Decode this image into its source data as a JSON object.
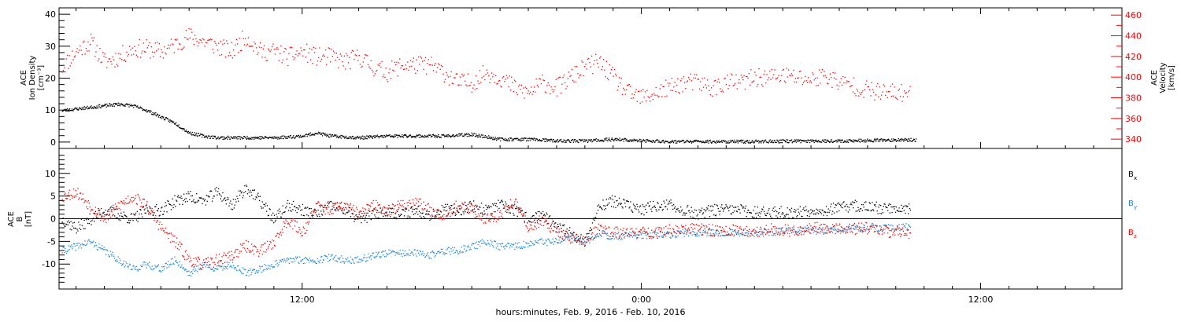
{
  "xaxis": {
    "caption": "hours:minutes, Feb.  9, 2016 - Feb. 10, 2016",
    "tick_labels": [
      "12:00",
      "0:00",
      "12:00"
    ],
    "tick_hours": [
      12,
      24,
      36
    ],
    "range_hours": [
      3.4,
      41.0
    ]
  },
  "colors": {
    "black": "#000000",
    "red": "#ff0000",
    "blue": "#1e88d6"
  },
  "chart_data": [
    {
      "type": "scatter",
      "panel": "top",
      "left_axis": {
        "label_lines": [
          "ACE",
          "Ion Density",
          "[cm⁻³]"
        ],
        "ylim": [
          -2,
          42
        ],
        "tick_labels": [
          "0",
          "10",
          "20",
          "30",
          "40"
        ],
        "tick_values": [
          0,
          10,
          20,
          30,
          40
        ]
      },
      "right_axis": {
        "label_lines": [
          "ACE",
          "Velocity",
          "[km/s]"
        ],
        "ylim": [
          331,
          467
        ],
        "tick_labels": [
          "340",
          "360",
          "380",
          "400",
          "420",
          "440",
          "460"
        ],
        "tick_values": [
          340,
          360,
          380,
          400,
          420,
          440,
          460
        ]
      },
      "series": [
        {
          "name": "Ion Density",
          "axis": "left",
          "color": "black",
          "x": [
            3.5,
            4.0,
            4.5,
            5.0,
            5.5,
            6.0,
            6.5,
            7.0,
            7.5,
            8.0,
            8.5,
            9.0,
            10,
            11,
            12,
            12.5,
            13,
            14,
            15,
            16,
            17,
            18,
            19,
            20,
            21,
            22,
            23,
            24,
            25,
            26,
            27,
            28,
            29,
            30,
            31,
            32,
            33,
            33.7
          ],
          "y": [
            10,
            10.5,
            11,
            11.5,
            12,
            11.5,
            10,
            8,
            6,
            3,
            2,
            1.5,
            1.5,
            1.5,
            2,
            3,
            2,
            1.5,
            2,
            2,
            2,
            2.5,
            1,
            1,
            0.5,
            0.5,
            1,
            0.5,
            0.3,
            0.3,
            0.3,
            0.3,
            0.4,
            0.5,
            0.5,
            0.6,
            0.8,
            0.8
          ]
        },
        {
          "name": "Velocity",
          "axis": "right",
          "color": "red",
          "x": [
            3.5,
            4.0,
            4.5,
            5.0,
            5.5,
            6.0,
            6.5,
            7.0,
            7.5,
            8.0,
            8.5,
            9.0,
            9.5,
            10,
            10.5,
            11,
            11.5,
            12,
            12.5,
            13,
            13.5,
            14,
            14.5,
            15,
            15.5,
            16,
            16.5,
            17,
            17.5,
            18,
            18.5,
            19,
            19.5,
            20,
            20.5,
            21,
            21.5,
            22,
            22.5,
            23,
            23.5,
            24,
            24.5,
            25,
            25.5,
            26,
            26.5,
            27,
            27.5,
            28,
            28.5,
            29,
            29.5,
            30,
            30.5,
            31,
            31.5,
            32,
            32.5,
            33,
            33.5
          ],
          "y": [
            410,
            425,
            435,
            415,
            420,
            428,
            428,
            425,
            432,
            440,
            435,
            430,
            425,
            440,
            425,
            425,
            420,
            425,
            420,
            420,
            415,
            420,
            410,
            405,
            412,
            412,
            412,
            405,
            395,
            395,
            405,
            400,
            390,
            385,
            395,
            390,
            400,
            410,
            415,
            400,
            385,
            380,
            385,
            390,
            395,
            395,
            390,
            395,
            395,
            400,
            400,
            402,
            400,
            398,
            402,
            395,
            392,
            388,
            385,
            385,
            385
          ]
        }
      ]
    },
    {
      "type": "scatter",
      "panel": "bottom",
      "left_axis": {
        "label_lines": [
          "ACE",
          "B",
          "[nT]"
        ],
        "ylim": [
          -15.5,
          15.5
        ],
        "tick_labels": [
          "-10",
          "-5",
          "0",
          "5",
          "10"
        ],
        "tick_values": [
          -10,
          -5,
          0,
          5,
          10
        ]
      },
      "legend": {
        "position": "right",
        "entries": [
          "B",
          "B",
          "B"
        ],
        "subscripts": [
          "x",
          "y",
          "z"
        ]
      },
      "series": [
        {
          "name": "Bx",
          "color": "black",
          "x": [
            3.5,
            4.0,
            4.5,
            5.0,
            5.5,
            6.0,
            6.5,
            7.0,
            7.5,
            8.0,
            8.5,
            9.0,
            9.5,
            10,
            10.5,
            11,
            11.5,
            12,
            12.5,
            13,
            13.5,
            14,
            14.5,
            15,
            15.5,
            16,
            16.5,
            17,
            17.5,
            18,
            18.5,
            19,
            19.5,
            20,
            20.5,
            21,
            21.5,
            22,
            22.5,
            23,
            23.5,
            24,
            24.5,
            25,
            25.5,
            26,
            26.5,
            27,
            27.5,
            28,
            28.5,
            29,
            29.5,
            30,
            30.5,
            31,
            31.5,
            32,
            32.5,
            33,
            33.5
          ],
          "y": [
            0,
            -2,
            0,
            2,
            1,
            0,
            2,
            2,
            4,
            5,
            4,
            6,
            3,
            7,
            4,
            0,
            3,
            2,
            1,
            3,
            2,
            0,
            1,
            2,
            1,
            2,
            1,
            2,
            2,
            3,
            2,
            3,
            2,
            0,
            1,
            -2,
            -3,
            -5,
            3,
            4,
            3,
            2,
            3,
            3,
            2,
            1,
            2,
            2,
            2,
            1.5,
            1.5,
            1.5,
            1.5,
            2,
            2,
            2.5,
            3,
            2.5,
            2.5,
            2.5,
            2.5
          ]
        },
        {
          "name": "By",
          "color": "blue",
          "x": [
            3.5,
            4.0,
            4.5,
            5.0,
            5.5,
            6.0,
            6.5,
            7.0,
            7.5,
            8.0,
            8.5,
            9.0,
            9.5,
            10,
            10.5,
            11,
            11.5,
            12,
            12.5,
            13,
            13.5,
            14,
            14.5,
            15,
            15.5,
            16,
            16.5,
            17,
            17.5,
            18,
            18.5,
            19,
            19.5,
            20,
            20.5,
            21,
            21.5,
            22,
            22.5,
            23,
            23.5,
            24,
            24.5,
            25,
            25.5,
            26,
            26.5,
            27,
            27.5,
            28,
            28.5,
            29,
            29.5,
            30,
            30.5,
            31,
            31.5,
            32,
            32.5,
            33,
            33.5
          ],
          "y": [
            -7,
            -6,
            -5,
            -7,
            -9,
            -11,
            -10,
            -11,
            -9,
            -12,
            -10,
            -11,
            -10,
            -12,
            -11,
            -10,
            -9,
            -9,
            -9,
            -8.5,
            -9,
            -9,
            -8,
            -7.5,
            -7.5,
            -7.5,
            -8,
            -7,
            -7,
            -6,
            -5,
            -6,
            -6,
            -5.5,
            -5,
            -5,
            -4,
            -5,
            -3,
            -4,
            -3.5,
            -3.5,
            -3.5,
            -3.5,
            -3,
            -3,
            -3,
            -3,
            -3,
            -3,
            -3,
            -2.5,
            -2.5,
            -2.5,
            -2.5,
            -2.5,
            -2,
            -2,
            -2,
            -1.8,
            -1.5
          ]
        },
        {
          "name": "Bz",
          "color": "red",
          "x": [
            3.5,
            4.0,
            4.5,
            5.0,
            5.5,
            6.0,
            6.5,
            7.0,
            7.5,
            8.0,
            8.5,
            9.0,
            9.5,
            10,
            10.5,
            11,
            11.5,
            12,
            12.5,
            13,
            13.5,
            14,
            14.5,
            15,
            15.5,
            16,
            16.5,
            17,
            17.5,
            18,
            18.5,
            19,
            19.5,
            20,
            20.5,
            21,
            21.5,
            22,
            22.5,
            23,
            23.5,
            24,
            24.5,
            25,
            25.5,
            26,
            26.5,
            27,
            27.5,
            28,
            28.5,
            29,
            29.5,
            30,
            30.5,
            31,
            31.5,
            32,
            32.5,
            33,
            33.5
          ],
          "y": [
            5,
            6,
            3,
            0,
            3,
            5,
            3,
            -2,
            -5,
            -9,
            -10,
            -9,
            -8,
            -6,
            -7,
            -5,
            0,
            -3,
            3,
            2,
            3,
            1,
            3,
            2,
            3,
            4,
            2,
            1,
            3,
            2,
            0,
            1,
            4,
            -2,
            0,
            -3,
            -4,
            -5,
            -2,
            -3,
            -3,
            -3,
            -3,
            -2.5,
            -2.5,
            -2,
            -2.5,
            -2.5,
            -2.5,
            -3,
            -2,
            -2.5,
            -2.5,
            -2,
            -2,
            -2,
            -2,
            -2,
            -2.5,
            -3,
            -3
          ]
        }
      ]
    }
  ]
}
